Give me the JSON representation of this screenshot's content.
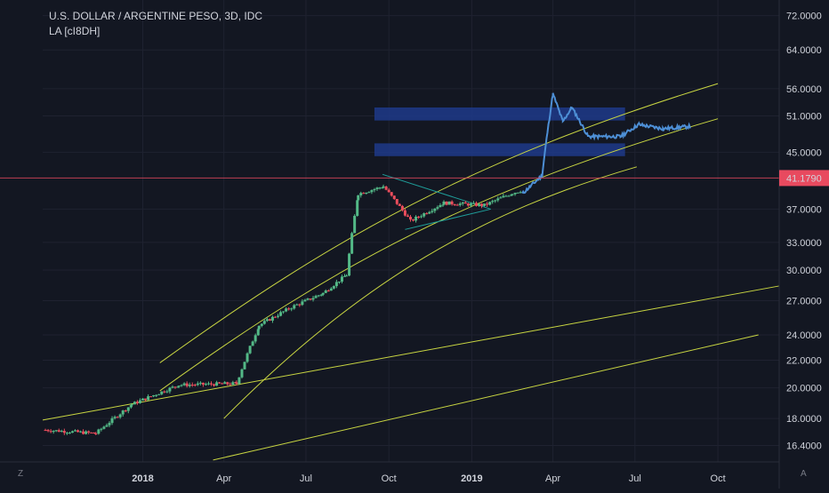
{
  "header": {
    "symbol_title": "U.S. DOLLAR / ARGENTINE PESO, 3D, IDC",
    "indicator": "LA [cI8DH]"
  },
  "axis": {
    "y_ticks": [
      "72.0000",
      "64.0000",
      "56.0000",
      "51.0000",
      "45.0000",
      "41.1790",
      "37.0000",
      "33.0000",
      "30.0000",
      "27.0000",
      "24.0000",
      "22.0000",
      "20.0000",
      "18.0000",
      "16.4000"
    ],
    "x_ticks": [
      "2018",
      "Apr",
      "Jul",
      "Oct",
      "2019",
      "Apr",
      "Jul",
      "Oct"
    ],
    "bold_x_ticks": [
      "2018",
      "2019"
    ],
    "left_button": "Z",
    "right_button": "A"
  },
  "colors": {
    "background": "#131722",
    "grid": "#1f2230",
    "up_candle": "#53b987",
    "down_candle": "#eb4d5c",
    "line_series": "#4d8fd6",
    "drawings": "#c9d642",
    "triangle": "#1f9e9a",
    "zone": "#1e3a8a",
    "price_line": "#e84a5f",
    "axis_text": "#d1d4dc"
  },
  "chart_data": {
    "type": "candlestick",
    "title": "U.S. DOLLAR / ARGENTINE PESO, 3D, IDC",
    "y_scale": "log",
    "ylim": [
      15.5,
      76
    ],
    "xlim": [
      "2017-09-12",
      "2019-12-08"
    ],
    "last_price": 41.179,
    "ohlc_anchors": [
      {
        "date": "2017-09-15",
        "close": 17.3
      },
      {
        "date": "2017-11-10",
        "close": 17.1
      },
      {
        "date": "2017-12-20",
        "close": 18.9
      },
      {
        "date": "2018-02-10",
        "close": 20.2
      },
      {
        "date": "2018-04-15",
        "close": 20.3
      },
      {
        "date": "2018-05-10",
        "close": 24.8
      },
      {
        "date": "2018-06-15",
        "close": 26.4
      },
      {
        "date": "2018-07-20",
        "close": 27.7
      },
      {
        "date": "2018-08-15",
        "close": 29.5
      },
      {
        "date": "2018-08-28",
        "close": 39.0
      },
      {
        "date": "2018-09-25",
        "close": 40.0
      },
      {
        "date": "2018-10-25",
        "close": 35.5
      },
      {
        "date": "2018-12-01",
        "close": 37.8
      },
      {
        "date": "2019-01-15",
        "close": 37.5
      },
      {
        "date": "2019-02-15",
        "close": 39.1
      },
      {
        "date": "2019-02-26",
        "close": 39.5
      }
    ],
    "line_series": {
      "name": "",
      "points": [
        {
          "date": "2019-02-26",
          "value": 39.0
        },
        {
          "date": "2019-03-20",
          "value": 41.5
        },
        {
          "date": "2019-04-01",
          "value": 55.0
        },
        {
          "date": "2019-04-12",
          "value": 50.0
        },
        {
          "date": "2019-04-22",
          "value": 52.5
        },
        {
          "date": "2019-05-10",
          "value": 47.5
        },
        {
          "date": "2019-06-15",
          "value": 47.5
        },
        {
          "date": "2019-07-05",
          "value": 49.5
        },
        {
          "date": "2019-08-01",
          "value": 48.8
        },
        {
          "date": "2019-09-01",
          "value": 49.2
        }
      ]
    },
    "zones": [
      {
        "from": "2018-09-15",
        "to": "2019-06-20",
        "low": 50.2,
        "high": 52.5
      },
      {
        "from": "2018-09-15",
        "to": "2019-06-20",
        "low": 44.4,
        "high": 46.4
      }
    ],
    "trendlines": [
      {
        "points": [
          {
            "date": "2017-09-12",
            "value": 17.9
          },
          {
            "date": "2019-12-08",
            "value": 28.4
          }
        ]
      },
      {
        "points": [
          {
            "date": "2018-03-20",
            "value": 15.6
          },
          {
            "date": "2019-11-15",
            "value": 24.0
          }
        ]
      }
    ],
    "curves": [
      {
        "points": [
          {
            "date": "2018-01-20",
            "value": 21.8
          },
          {
            "date": "2018-08-01",
            "value": 33.5
          },
          {
            "date": "2019-01-01",
            "value": 44.0
          },
          {
            "date": "2019-10-01",
            "value": 57.0
          }
        ]
      },
      {
        "points": [
          {
            "date": "2018-01-20",
            "value": 19.8
          },
          {
            "date": "2018-08-01",
            "value": 30.5
          },
          {
            "date": "2019-01-01",
            "value": 39.5
          },
          {
            "date": "2019-10-01",
            "value": 50.5
          }
        ]
      },
      {
        "points": [
          {
            "date": "2018-04-01",
            "value": 18.0
          },
          {
            "date": "2018-09-01",
            "value": 29.0
          },
          {
            "date": "2019-01-15",
            "value": 36.8
          },
          {
            "date": "2019-07-03",
            "value": 42.8
          }
        ]
      }
    ],
    "triangle": {
      "upper": [
        {
          "date": "2018-09-24",
          "value": 41.7
        },
        {
          "date": "2019-01-22",
          "value": 37.0
        }
      ],
      "lower": [
        {
          "date": "2018-10-19",
          "value": 34.5
        },
        {
          "date": "2019-01-22",
          "value": 37.0
        }
      ]
    }
  }
}
